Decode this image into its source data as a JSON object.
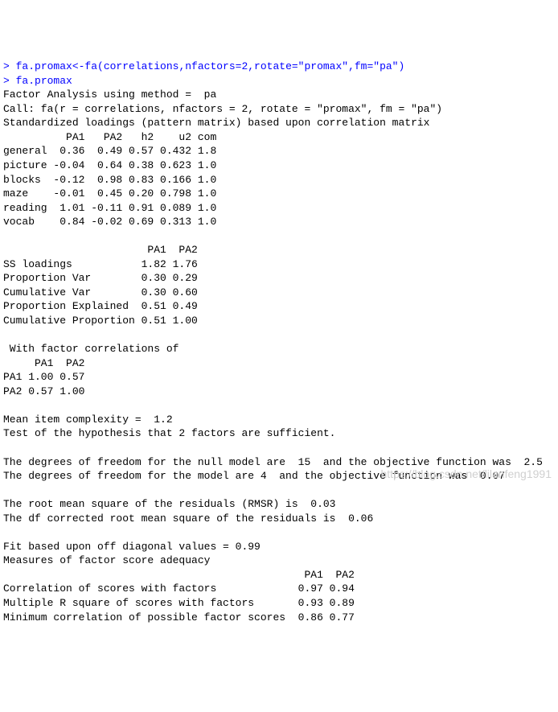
{
  "console": {
    "prompt_char": "> ",
    "cmd1": "fa.promax<-fa(correlations,nfactors=2,rotate=\"promax\",fm=\"pa\")",
    "cmd2": "fa.promax",
    "header1": "Factor Analysis using method =  pa",
    "header2": "Call: fa(r = correlations, nfactors = 2, rotate = \"promax\", fm = \"pa\")",
    "header3": "Standardized loadings (pattern matrix) based upon correlation matrix",
    "loadings_header": "          PA1   PA2   h2    u2 com",
    "loadings_rows": {
      "r1": "general  0.36  0.49 0.57 0.432 1.8",
      "r2": "picture -0.04  0.64 0.38 0.623 1.0",
      "r3": "blocks  -0.12  0.98 0.83 0.166 1.0",
      "r4": "maze    -0.01  0.45 0.20 0.798 1.0",
      "r5": "reading  1.01 -0.11 0.91 0.089 1.0",
      "r6": "vocab    0.84 -0.02 0.69 0.313 1.0"
    },
    "var_header": "                       PA1  PA2",
    "var_rows": {
      "v1": "SS loadings           1.82 1.76",
      "v2": "Proportion Var        0.30 0.29",
      "v3": "Cumulative Var        0.30 0.60",
      "v4": "Proportion Explained  0.51 0.49",
      "v5": "Cumulative Proportion 0.51 1.00"
    },
    "corr_title": " With factor correlations of ",
    "corr_header": "     PA1  PA2",
    "corr_rows": {
      "c1": "PA1 1.00 0.57",
      "c2": "PA2 0.57 1.00"
    },
    "complexity": "Mean item complexity =  1.2",
    "hypothesis": "Test of the hypothesis that 2 factors are sufficient.",
    "df_null": "The degrees of freedom for the null model are  15  and the objective function was  2.5",
    "df_model": "The degrees of freedom for the model are 4  and the objective function was  0.07 ",
    "rmsr1": "The root mean square of the residuals (RMSR) is  0.03 ",
    "rmsr2": "The df corrected root mean square of the residuals is  0.06 ",
    "fit": "Fit based upon off diagonal values = 0.99",
    "adequacy_title": "Measures of factor score adequacy             ",
    "adequacy_header": "                                                PA1  PA2",
    "adequacy_rows": {
      "a1": "Correlation of scores with factors             0.97 0.94",
      "a2": "Multiple R square of scores with factors       0.93 0.89",
      "a3": "Minimum correlation of possible factor scores  0.86 0.77"
    }
  },
  "watermark": "https://blog.csdn.net/lilanfeng1991"
}
